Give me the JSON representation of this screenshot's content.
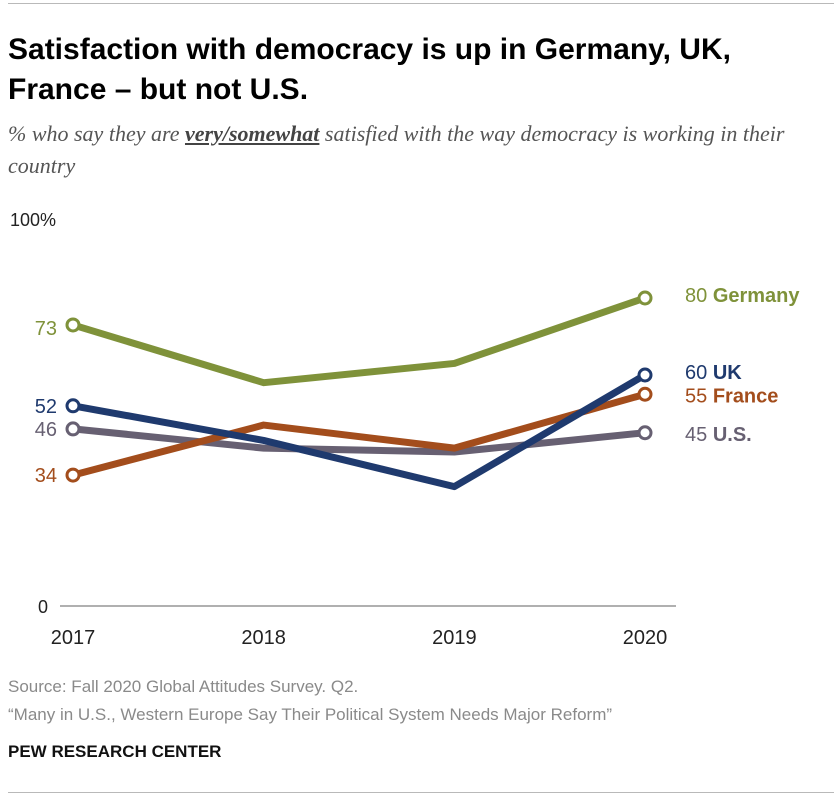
{
  "title": "Satisfaction with democracy is up in Germany, UK, France – but not U.S.",
  "subtitle": {
    "before": "% who say they are ",
    "emphasis": "very/somewhat",
    "after": " satisfied with the way democracy is working in their country"
  },
  "chart_data": {
    "type": "line",
    "x": [
      "2017",
      "2018",
      "2019",
      "2020"
    ],
    "ylim": [
      0,
      100
    ],
    "y_tick_labels": [
      "100%",
      "0"
    ],
    "grid": false,
    "series": [
      {
        "name": "Germany",
        "color": "#7f923a",
        "values": [
          73,
          58,
          63,
          80
        ],
        "start_label": "73",
        "end_label": "80",
        "label_color": "#7f923a"
      },
      {
        "name": "UK",
        "color": "#1f3a6e",
        "values": [
          52,
          43,
          31,
          60
        ],
        "start_label": "52",
        "end_label": "60",
        "label_color": "#1f3a6e"
      },
      {
        "name": "France",
        "color": "#a34d1c",
        "values": [
          34,
          47,
          41,
          55
        ],
        "start_label": "34",
        "end_label": "55",
        "label_color": "#a34d1c"
      },
      {
        "name": "U.S.",
        "color": "#676072",
        "values": [
          46,
          41,
          40,
          45
        ],
        "start_label": "46",
        "end_label": "45",
        "label_color": "#676072"
      }
    ]
  },
  "footer": {
    "source": "Source: Fall 2020 Global Attitudes Survey. Q2.",
    "report": "“Many in U.S., Western Europe Say Their Political System Needs Major Reform”",
    "brand": "PEW RESEARCH CENTER"
  }
}
